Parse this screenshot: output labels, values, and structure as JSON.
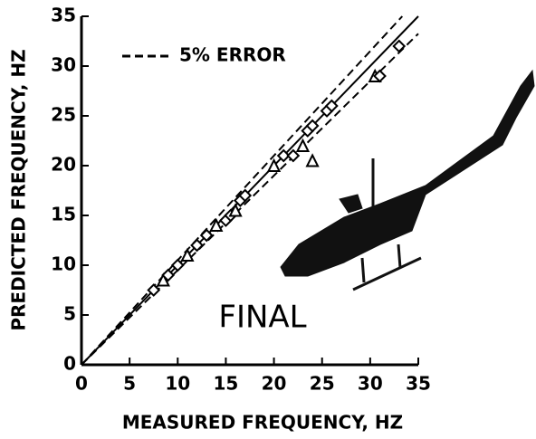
{
  "chart_data": {
    "type": "scatter",
    "x_label": "MEASURED FREQUENCY, HZ",
    "y_label": "PREDICTED FREQUENCY, HZ",
    "annotation": "FINAL",
    "legend": {
      "label": "5% ERROR",
      "position": "upper left"
    },
    "color": "#000000",
    "reference_lines": [
      {
        "slope": 1,
        "style": "solid"
      },
      {
        "slope": 1.05,
        "style": "dashed"
      },
      {
        "slope": 0.95,
        "style": "dashed"
      }
    ],
    "x": [
      7.5,
      8.5,
      9,
      10,
      11,
      12,
      13,
      14,
      15,
      15.5,
      16,
      16.5,
      17,
      20,
      21,
      22,
      23,
      23.5,
      24,
      24,
      25.5,
      26,
      30.5,
      31,
      33
    ],
    "values": [
      7.5,
      8.5,
      9,
      10,
      11,
      12,
      13,
      14,
      14.5,
      15,
      15.5,
      16.5,
      17,
      20,
      21,
      21,
      22,
      23.5,
      24,
      20.5,
      25.5,
      26,
      29,
      29,
      32
    ],
    "xlim": [
      0,
      35
    ],
    "ylim": [
      0,
      35
    ],
    "xticks": [
      0,
      5,
      10,
      15,
      20,
      25,
      30,
      35
    ],
    "yticks": [
      0,
      5,
      10,
      15,
      20,
      25,
      30,
      35
    ]
  }
}
